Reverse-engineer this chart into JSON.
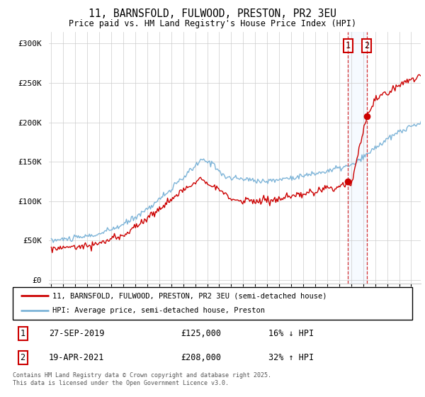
{
  "title": "11, BARNSFOLD, FULWOOD, PRESTON, PR2 3EU",
  "subtitle": "Price paid vs. HM Land Registry's House Price Index (HPI)",
  "yticks": [
    0,
    50000,
    100000,
    150000,
    200000,
    250000,
    300000
  ],
  "ytick_labels": [
    "£0",
    "£50K",
    "£100K",
    "£150K",
    "£200K",
    "£250K",
    "£300K"
  ],
  "ylim": [
    -5000,
    315000
  ],
  "sale1_year": 2019.74,
  "sale1_price": 125000,
  "sale2_year": 2021.3,
  "sale2_price": 208000,
  "legend_line1": "11, BARNSFOLD, FULWOOD, PRESTON, PR2 3EU (semi-detached house)",
  "legend_line2": "HPI: Average price, semi-detached house, Preston",
  "footer": "Contains HM Land Registry data © Crown copyright and database right 2025.\nThis data is licensed under the Open Government Licence v3.0.",
  "hpi_color": "#7db4d8",
  "price_color": "#cc0000",
  "vline_color": "#cc0000",
  "shade_color": "#ddeeff"
}
